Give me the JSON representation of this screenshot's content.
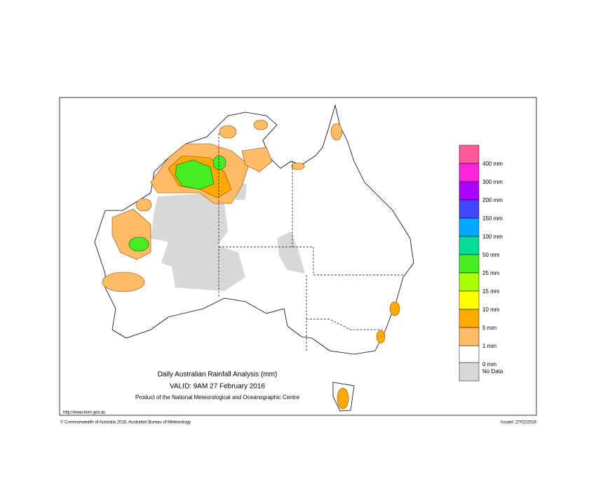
{
  "header": {
    "title": "Daily Australian Rainfall Analysis (mm)",
    "valid": "VALID: 9AM 27 February 2016",
    "product": "Product of the National Meteorological and Oceanographic Centre"
  },
  "footer": {
    "url": "http://www.bom.gov.au",
    "copyright": "© Commonwealth of Australia 2016, Australian Bureau of Meteorology",
    "issued": "Issued: 27/02/2016"
  },
  "legend": {
    "items": [
      {
        "label": "400 mm",
        "color": "#ff5599"
      },
      {
        "label": "300 mm",
        "color": "#ff22dd"
      },
      {
        "label": "200 mm",
        "color": "#aa00ff"
      },
      {
        "label": "150 mm",
        "color": "#4444ff"
      },
      {
        "label": "100 mm",
        "color": "#00aaff"
      },
      {
        "label": "50 mm",
        "color": "#00dd99"
      },
      {
        "label": "25 mm",
        "color": "#44ee22"
      },
      {
        "label": "15 mm",
        "color": "#aaff00"
      },
      {
        "label": "10 mm",
        "color": "#ffff00"
      },
      {
        "label": "5 mm",
        "color": "#ffaa00"
      },
      {
        "label": "1 mm",
        "color": "#ffbb66"
      },
      {
        "label": "0 mm",
        "color": "#ffffff"
      }
    ],
    "no_data": {
      "label": "No Data",
      "color": "#d8d8d8"
    }
  }
}
